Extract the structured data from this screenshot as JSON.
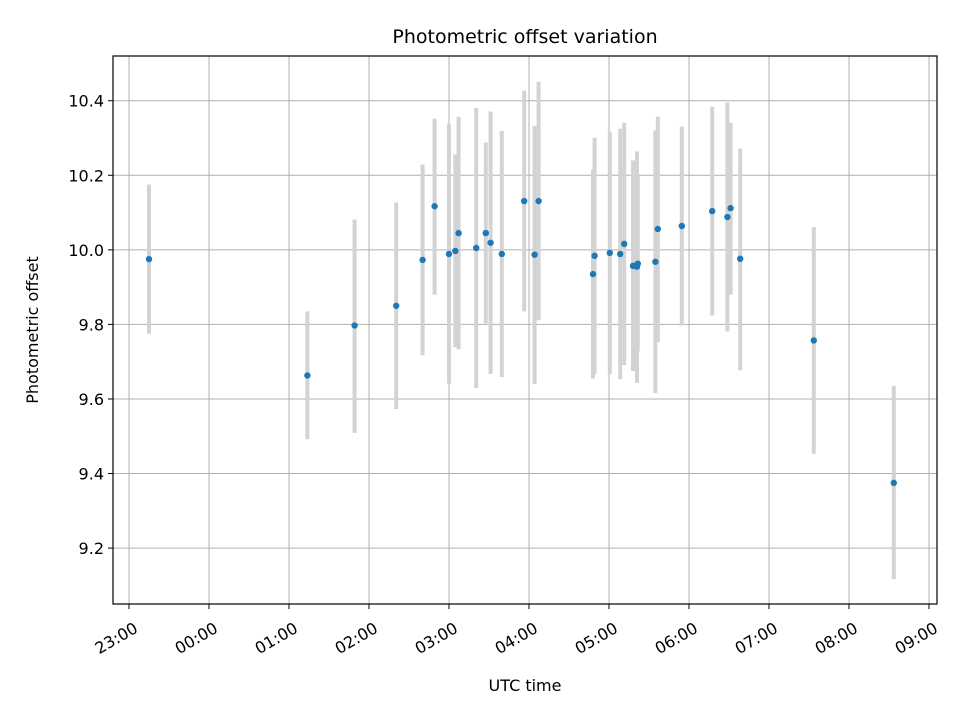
{
  "chart_data": {
    "type": "scatter",
    "title": "Photometric offset variation",
    "xlabel": "UTC time",
    "ylabel": "Photometric offset",
    "grid": true,
    "x_unit": "hours after 23:00 UTC",
    "xlim": [
      -0.2,
      10.1
    ],
    "ylim": [
      9.05,
      10.52
    ],
    "x_ticks": [
      {
        "value": 0,
        "label": "23:00"
      },
      {
        "value": 1,
        "label": "00:00"
      },
      {
        "value": 2,
        "label": "01:00"
      },
      {
        "value": 3,
        "label": "02:00"
      },
      {
        "value": 4,
        "label": "03:00"
      },
      {
        "value": 5,
        "label": "04:00"
      },
      {
        "value": 6,
        "label": "05:00"
      },
      {
        "value": 7,
        "label": "06:00"
      },
      {
        "value": 8,
        "label": "07:00"
      },
      {
        "value": 9,
        "label": "08:00"
      },
      {
        "value": 10,
        "label": "09:00"
      }
    ],
    "y_ticks": [
      {
        "value": 9.2,
        "label": "9.2"
      },
      {
        "value": 9.4,
        "label": "9.4"
      },
      {
        "value": 9.6,
        "label": "9.6"
      },
      {
        "value": 9.8,
        "label": "9.8"
      },
      {
        "value": 10.0,
        "label": "10.0"
      },
      {
        "value": 10.2,
        "label": "10.2"
      },
      {
        "value": 10.4,
        "label": "10.4"
      }
    ],
    "marker_color": "#1f77b4",
    "errorbar_color": "#d3d3d3",
    "points": [
      {
        "x": 0.25,
        "y": 9.975,
        "lo": 9.775,
        "hi": 10.175
      },
      {
        "x": 2.23,
        "y": 9.663,
        "lo": 9.492,
        "hi": 9.835
      },
      {
        "x": 2.82,
        "y": 9.797,
        "lo": 9.509,
        "hi": 10.081
      },
      {
        "x": 3.34,
        "y": 9.85,
        "lo": 9.573,
        "hi": 10.127
      },
      {
        "x": 3.67,
        "y": 9.973,
        "lo": 9.717,
        "hi": 10.229
      },
      {
        "x": 3.82,
        "y": 10.117,
        "lo": 9.88,
        "hi": 10.352
      },
      {
        "x": 4.0,
        "y": 9.989,
        "lo": 9.641,
        "hi": 10.337
      },
      {
        "x": 4.08,
        "y": 9.997,
        "lo": 9.739,
        "hi": 10.256
      },
      {
        "x": 4.12,
        "y": 10.045,
        "lo": 9.733,
        "hi": 10.357
      },
      {
        "x": 4.34,
        "y": 10.005,
        "lo": 9.629,
        "hi": 10.381
      },
      {
        "x": 4.46,
        "y": 10.045,
        "lo": 9.803,
        "hi": 10.288
      },
      {
        "x": 4.52,
        "y": 10.019,
        "lo": 9.667,
        "hi": 10.371
      },
      {
        "x": 4.66,
        "y": 9.989,
        "lo": 9.659,
        "hi": 10.319
      },
      {
        "x": 4.94,
        "y": 10.131,
        "lo": 9.835,
        "hi": 10.427
      },
      {
        "x": 5.07,
        "y": 9.987,
        "lo": 9.64,
        "hi": 10.333
      },
      {
        "x": 5.12,
        "y": 10.131,
        "lo": 9.811,
        "hi": 10.451
      },
      {
        "x": 5.8,
        "y": 9.935,
        "lo": 9.655,
        "hi": 10.216
      },
      {
        "x": 5.82,
        "y": 9.984,
        "lo": 9.667,
        "hi": 10.301
      },
      {
        "x": 6.01,
        "y": 9.992,
        "lo": 9.667,
        "hi": 10.317
      },
      {
        "x": 6.14,
        "y": 9.989,
        "lo": 9.653,
        "hi": 10.325
      },
      {
        "x": 6.19,
        "y": 10.016,
        "lo": 9.691,
        "hi": 10.341
      },
      {
        "x": 6.3,
        "y": 9.957,
        "lo": 9.675,
        "hi": 10.24
      },
      {
        "x": 6.35,
        "y": 9.955,
        "lo": 9.643,
        "hi": 10.264
      },
      {
        "x": 6.36,
        "y": 9.963,
        "lo": 9.728,
        "hi": 10.197
      },
      {
        "x": 6.58,
        "y": 9.968,
        "lo": 9.616,
        "hi": 10.32
      },
      {
        "x": 6.61,
        "y": 10.056,
        "lo": 9.752,
        "hi": 10.357
      },
      {
        "x": 6.91,
        "y": 10.064,
        "lo": 9.797,
        "hi": 10.331
      },
      {
        "x": 7.29,
        "y": 10.104,
        "lo": 9.824,
        "hi": 10.384
      },
      {
        "x": 7.48,
        "y": 10.088,
        "lo": 9.781,
        "hi": 10.395
      },
      {
        "x": 7.52,
        "y": 10.112,
        "lo": 9.88,
        "hi": 10.341
      },
      {
        "x": 7.64,
        "y": 9.976,
        "lo": 9.677,
        "hi": 10.272
      },
      {
        "x": 8.56,
        "y": 9.757,
        "lo": 9.453,
        "hi": 10.061
      },
      {
        "x": 9.56,
        "y": 9.375,
        "lo": 9.117,
        "hi": 9.635
      }
    ]
  }
}
